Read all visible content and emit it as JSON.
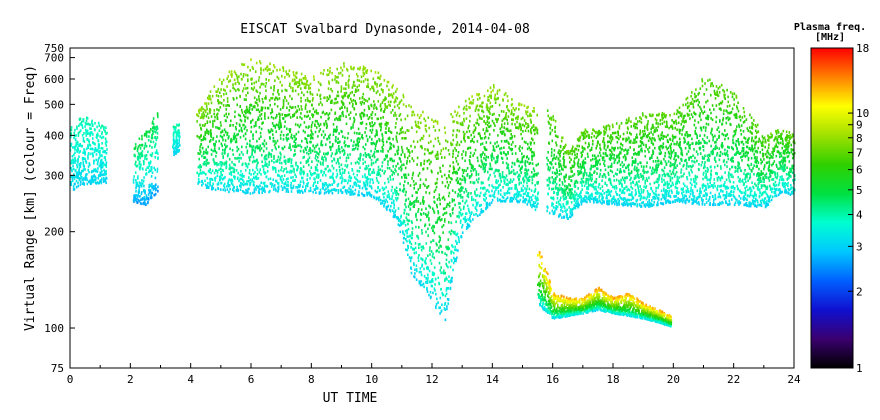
{
  "chart_data": {
    "type": "scatter",
    "title": "EISCAT Svalbard Dynasonde, 2014-04-08",
    "xlabel": "UT TIME",
    "ylabel": "Virtual Range [km] (colour = Freq)",
    "xlim": [
      0,
      24
    ],
    "ylim": [
      75,
      750
    ],
    "yscale": "log",
    "x_ticks": [
      "0",
      "2",
      "4",
      "6",
      "8",
      "10",
      "12",
      "14",
      "16",
      "18",
      "20",
      "22",
      "24"
    ],
    "y_ticks": [
      "75",
      "100",
      "200",
      "300",
      "400",
      "500",
      "600",
      "700",
      "750"
    ],
    "grid": false,
    "colorbar": {
      "title_line1": "Plasma freq.",
      "title_line2": "[MHz]",
      "scale": "log",
      "range": [
        1,
        18
      ],
      "ticks": [
        "1",
        "2",
        "3",
        "4",
        "5",
        "6",
        "7",
        "8",
        "9",
        "10",
        "18"
      ],
      "colors": [
        "#000000",
        "#3a0070",
        "#1010d0",
        "#0060ff",
        "#00c8ff",
        "#00ffd0",
        "#00e040",
        "#30d000",
        "#a0e000",
        "#ffff00",
        "#ff8000",
        "#ff0000"
      ]
    },
    "series": [
      {
        "segment": "F-region echoes 00:00-01:20",
        "x": [
          0.0,
          0.3,
          0.6,
          0.9,
          1.2
        ],
        "y_low": [
          270,
          280,
          285,
          285,
          285
        ],
        "y_high": [
          440,
          460,
          470,
          460,
          430
        ],
        "freq_mhz_low": 3,
        "freq_mhz_high": 4
      },
      {
        "segment": "F-region echoes 02:10-03:00",
        "x": [
          2.1,
          2.5,
          2.9
        ],
        "y_low": [
          250,
          245,
          270
        ],
        "y_high": [
          380,
          420,
          480
        ],
        "freq_mhz_low": 2.5,
        "freq_mhz_high": 5
      },
      {
        "segment": "F-region echoes 03:40-04:00",
        "x": [
          3.4,
          3.6
        ],
        "y_low": [
          350,
          360
        ],
        "y_high": [
          430,
          440
        ],
        "freq_mhz_low": 3,
        "freq_mhz_high": 4
      },
      {
        "segment": "F-region echoes 04:10-15:40",
        "x": [
          4.2,
          5.0,
          6.0,
          7.0,
          8.0,
          9.0,
          10.0,
          10.8,
          11.3,
          11.8,
          12.4,
          13.0,
          14.0,
          15.0,
          15.5
        ],
        "y_low": [
          280,
          270,
          265,
          270,
          265,
          265,
          260,
          220,
          150,
          130,
          105,
          200,
          250,
          250,
          230
        ],
        "y_high": [
          480,
          620,
          700,
          660,
          620,
          690,
          650,
          580,
          500,
          480,
          460,
          520,
          580,
          500,
          500
        ],
        "freq_mhz_low": 3,
        "freq_mhz_high": 8
      },
      {
        "segment": "F-region echoes 15:40-24:00",
        "x": [
          15.8,
          16.5,
          17.0,
          18.0,
          19.0,
          20.0,
          21.0,
          22.0,
          23.0,
          23.6,
          24.0
        ],
        "y_low": [
          230,
          220,
          250,
          245,
          240,
          250,
          245,
          245,
          240,
          270,
          260
        ],
        "y_high": [
          500,
          360,
          420,
          440,
          480,
          470,
          620,
          560,
          400,
          430,
          400
        ],
        "freq_mhz_low": 3,
        "freq_mhz_high": 7
      },
      {
        "segment": "E-region echoes 15:30-19:50",
        "x": [
          15.5,
          16.0,
          16.5,
          17.0,
          17.5,
          18.0,
          18.5,
          19.0,
          19.5,
          19.9
        ],
        "y_low": [
          120,
          108,
          110,
          112,
          115,
          112,
          110,
          108,
          105,
          102
        ],
        "y_high": [
          180,
          130,
          125,
          125,
          135,
          125,
          130,
          120,
          115,
          110
        ],
        "freq_mhz_low": 3,
        "freq_mhz_high": 13
      }
    ]
  }
}
